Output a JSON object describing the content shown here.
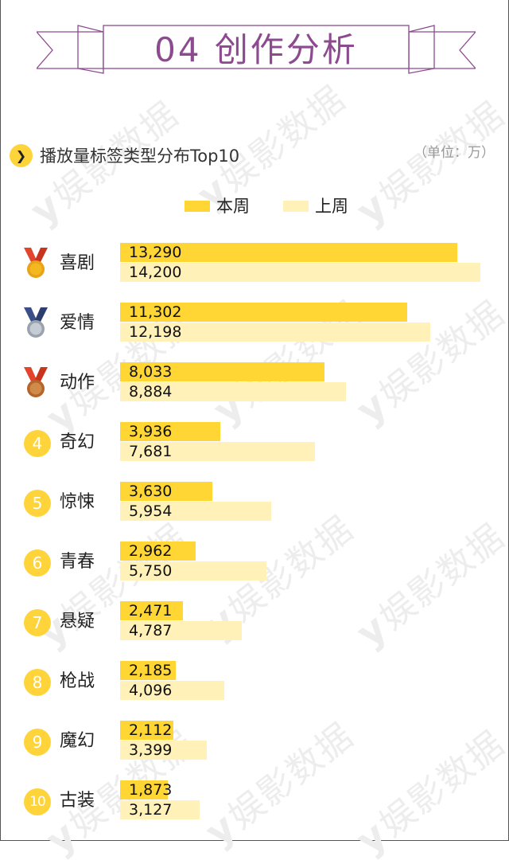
{
  "banner": {
    "title": "04 创作分析",
    "color": "#8c4a8f"
  },
  "section": {
    "icon": "chevron-right-icon",
    "title": "播放量标签类型分布Top10",
    "unit": "（单位：万）"
  },
  "watermark": {
    "text": "娱影数据"
  },
  "colors": {
    "current": "#ffd633",
    "previous": "#fff1b8",
    "badge": "#ffd43b"
  },
  "chart_data": {
    "type": "bar",
    "orientation": "horizontal",
    "legend_position": "top-center",
    "categories": [
      "喜剧",
      "爱情",
      "动作",
      "奇幻",
      "惊悚",
      "青春",
      "悬疑",
      "枪战",
      "魔幻",
      "古装"
    ],
    "ranks": [
      "1",
      "2",
      "3",
      "4",
      "5",
      "6",
      "7",
      "8",
      "9",
      "10"
    ],
    "rank_icons": [
      "gold-medal-icon",
      "silver-medal-icon",
      "bronze-medal-icon"
    ],
    "series": [
      {
        "name": "本周",
        "values": [
          13290,
          11302,
          8033,
          3936,
          3630,
          2962,
          2471,
          2185,
          2112,
          1873
        ],
        "labels": [
          "13,290",
          "11,302",
          "8,033",
          "3,936",
          "3,630",
          "2,962",
          "2,471",
          "2,185",
          "2,112",
          "1,873"
        ]
      },
      {
        "name": "上周",
        "values": [
          14200,
          12198,
          8884,
          7681,
          5954,
          5750,
          4787,
          4096,
          3399,
          3127
        ],
        "labels": [
          "14,200",
          "12,198",
          "8,884",
          "7,681",
          "5,954",
          "5,750",
          "4,787",
          "4,096",
          "3,399",
          "3,127"
        ]
      }
    ],
    "xlim": [
      0,
      15000
    ]
  }
}
